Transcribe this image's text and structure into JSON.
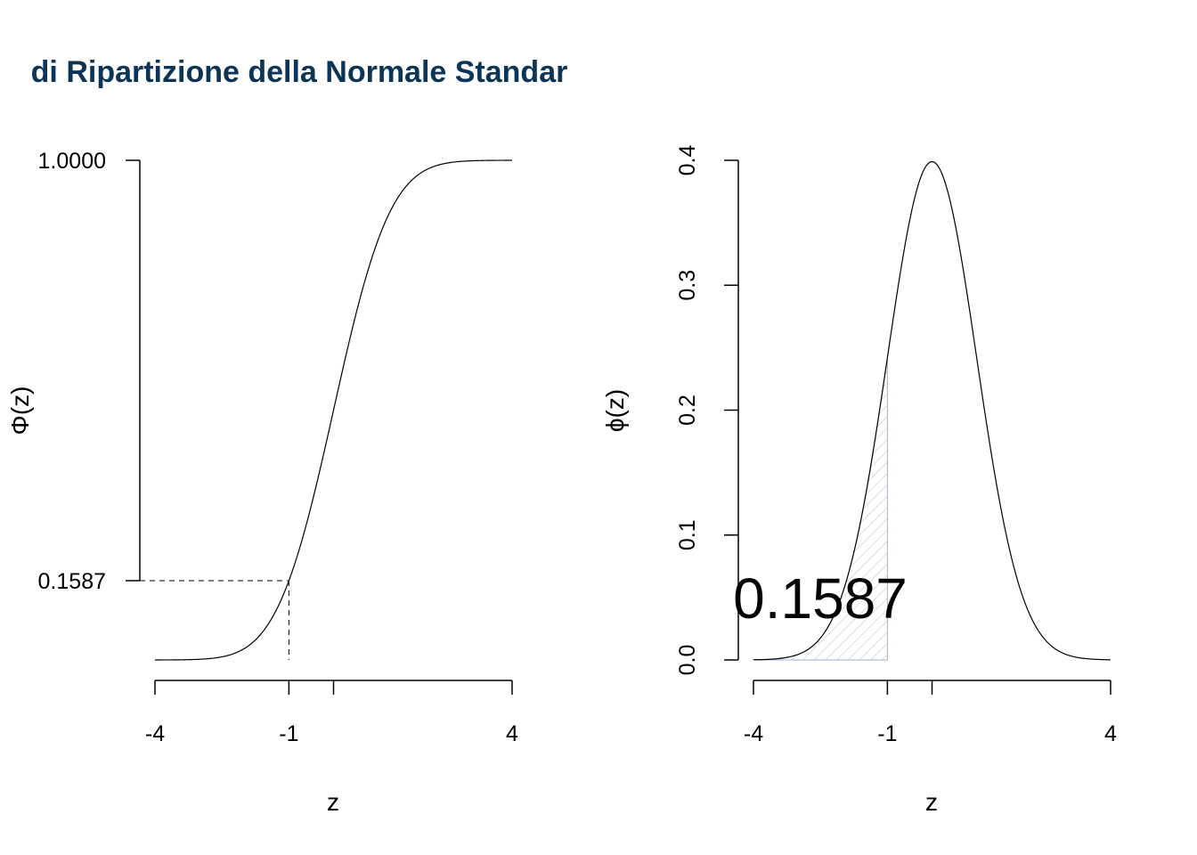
{
  "colors": {
    "title": "#0b3456",
    "curve": "#000000",
    "shade": "#b9c9da",
    "guide": "#000000"
  },
  "chart_data": [
    {
      "type": "line",
      "title": "di Ripartizione della Normale Standar",
      "xlabel": "z",
      "ylabel": "Φ(z)",
      "function": "standard normal CDF",
      "xlim": [
        -4,
        4
      ],
      "ylim": [
        0,
        1
      ],
      "x_ticks": [
        -4,
        -1,
        0,
        4
      ],
      "x_tick_labels": [
        "-4",
        "-1",
        "",
        "4"
      ],
      "y_ticks": [
        0.1587,
        1.0
      ],
      "y_tick_labels": [
        "0.1587",
        "1.0000"
      ],
      "marked_point": {
        "x": -1,
        "y": 0.1587
      },
      "x": [
        -4,
        -3,
        -2,
        -1,
        0,
        1,
        2,
        3,
        4
      ],
      "y": [
        3e-05,
        0.0013,
        0.0228,
        0.1587,
        0.5,
        0.8413,
        0.9772,
        0.9987,
        0.99997
      ]
    },
    {
      "type": "area",
      "xlabel": "z",
      "ylabel": "ϕ(z)",
      "function": "standard normal PDF",
      "xlim": [
        -4,
        4
      ],
      "ylim": [
        0,
        0.4
      ],
      "x_ticks": [
        -4,
        -1,
        0,
        4
      ],
      "x_tick_labels": [
        "-4",
        "-1",
        "",
        "4"
      ],
      "y_ticks": [
        0.0,
        0.1,
        0.2,
        0.3,
        0.4
      ],
      "y_tick_labels": [
        "0.0",
        "0.1",
        "0.2",
        "0.3",
        "0.4"
      ],
      "shaded_region": {
        "from": -4,
        "to": -1,
        "area": 0.1587
      },
      "annotation": "0.1587",
      "x": [
        -4,
        -3,
        -2,
        -1,
        0,
        1,
        2,
        3,
        4
      ],
      "y": [
        0.0001,
        0.0044,
        0.054,
        0.242,
        0.3989,
        0.242,
        0.054,
        0.0044,
        0.0001
      ]
    }
  ]
}
